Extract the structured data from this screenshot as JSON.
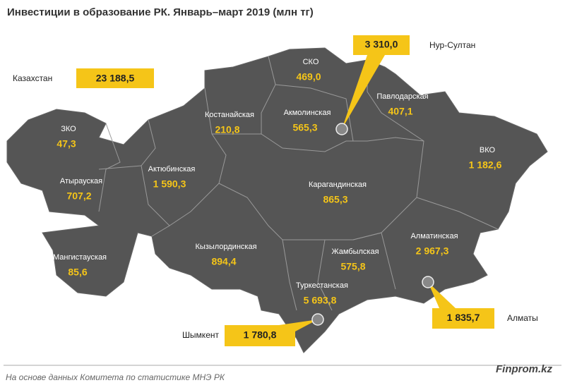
{
  "title": "Инвестиции  в образование РК. Январь–март 2019 (млн тг)",
  "total": {
    "label": "Казахстан",
    "value": "23 188,5"
  },
  "regions": [
    {
      "name": "СКО",
      "value": "469,0"
    },
    {
      "name": "Павлодарская",
      "value": "407,1"
    },
    {
      "name": "Костанайская",
      "value": "210,8"
    },
    {
      "name": "Акмолинская",
      "value": "565,3"
    },
    {
      "name": "ЗКО",
      "value": "47,3"
    },
    {
      "name": "ВКО",
      "value": "1 182,6"
    },
    {
      "name": "Атырауская",
      "value": "707,2"
    },
    {
      "name": "Актюбинская",
      "value": "1 590,3"
    },
    {
      "name": "Карагандинская",
      "value": "865,3"
    },
    {
      "name": "Мангистауская",
      "value": "85,6"
    },
    {
      "name": "Кызылординская",
      "value": "894,4"
    },
    {
      "name": "Жамбылская",
      "value": "575,8"
    },
    {
      "name": "Алматинская",
      "value": "2 967,3"
    },
    {
      "name": "Туркестанская",
      "value": "5 693,8"
    }
  ],
  "cities": [
    {
      "name": "Нур-Султан",
      "value": "3 310,0"
    },
    {
      "name": "Алматы",
      "value": "1 835,7"
    },
    {
      "name": "Шымкент",
      "value": "1 780,8"
    }
  ],
  "source": "На основе данных Комитета по статистике МНЭ РК",
  "brand": "Finprom.kz"
}
